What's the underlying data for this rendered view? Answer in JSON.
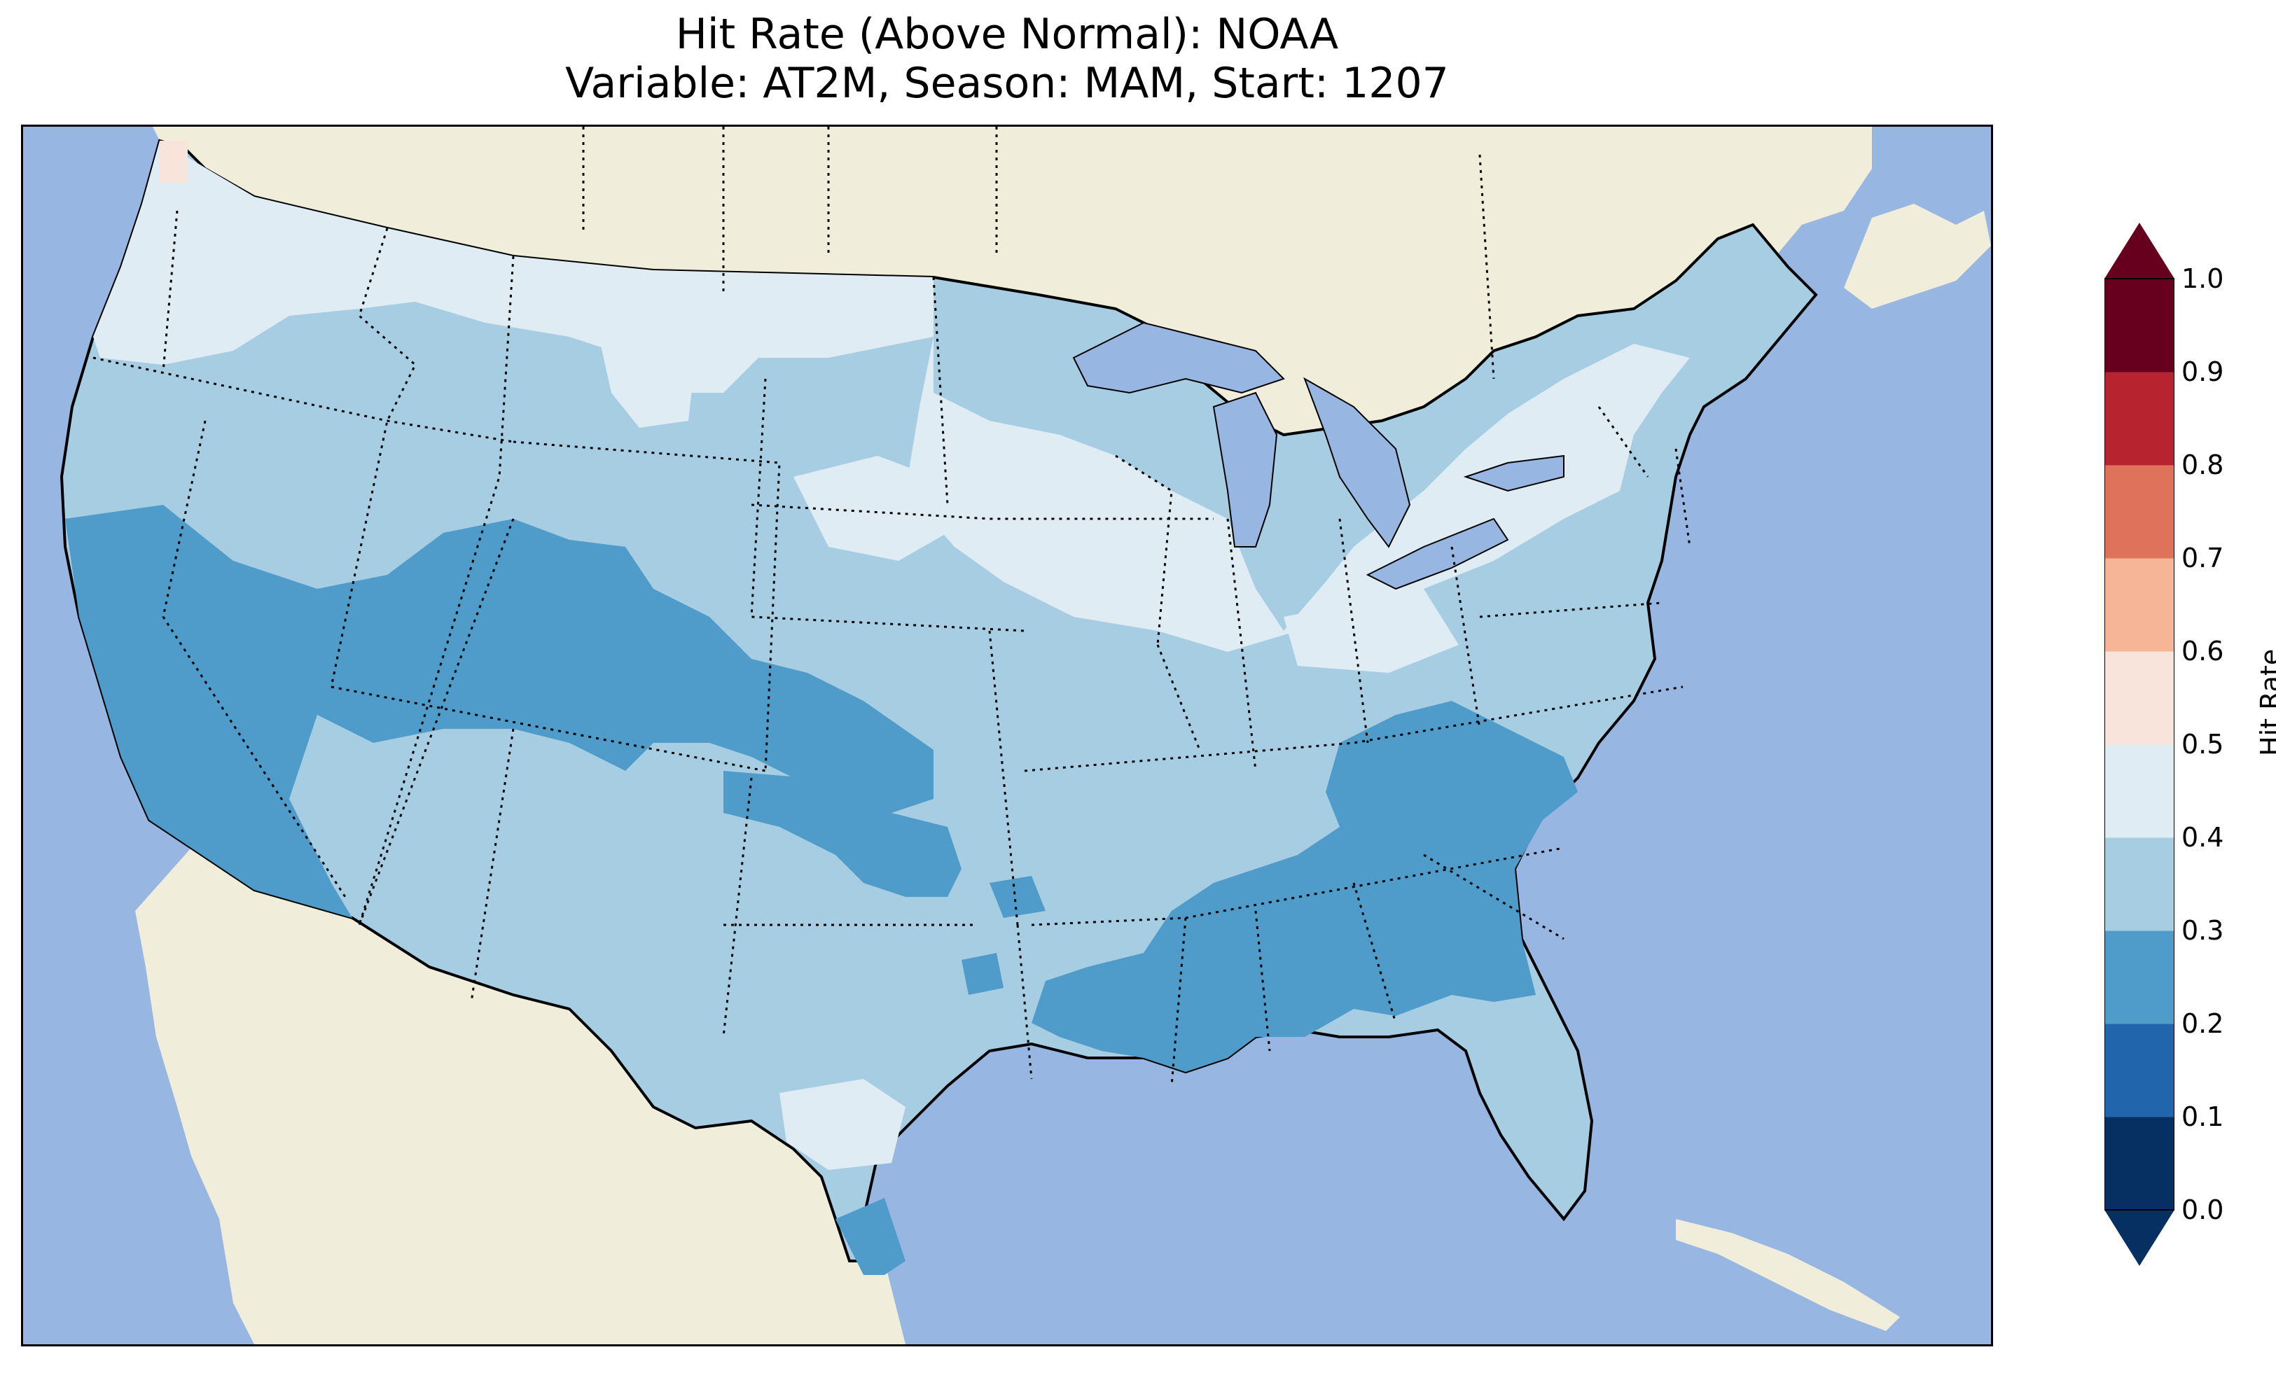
{
  "title": {
    "line1": "Hit Rate (Above Normal): NOAA",
    "line2": "Variable: AT2M, Season: MAM, Start: 1207"
  },
  "colors": {
    "ocean": "#97b6e1",
    "land": "#f0eedb",
    "borders": "#000000"
  },
  "colorbar": {
    "label": "Hit Rate",
    "ticks": [
      "0.0",
      "0.1",
      "0.2",
      "0.3",
      "0.4",
      "0.5",
      "0.6",
      "0.7",
      "0.8",
      "0.9",
      "1.0"
    ],
    "extend": "both",
    "bins": [
      {
        "range": [
          0.0,
          0.1
        ],
        "color": "#053061"
      },
      {
        "range": [
          0.1,
          0.2
        ],
        "color": "#2166ac"
      },
      {
        "range": [
          0.2,
          0.3
        ],
        "color": "#4f9bc9"
      },
      {
        "range": [
          0.3,
          0.4
        ],
        "color": "#a7cde3"
      },
      {
        "range": [
          0.4,
          0.5
        ],
        "color": "#e0ecf4"
      },
      {
        "range": [
          0.5,
          0.6
        ],
        "color": "#f9e4dc"
      },
      {
        "range": [
          0.6,
          0.7
        ],
        "color": "#f5b596"
      },
      {
        "range": [
          0.7,
          0.8
        ],
        "color": "#de725a"
      },
      {
        "range": [
          0.8,
          0.9
        ],
        "color": "#b7242f"
      },
      {
        "range": [
          0.9,
          1.0
        ],
        "color": "#67001f"
      }
    ]
  },
  "map": {
    "region": "Contiguous United States",
    "state_borders": "dotted",
    "coastlines": "solid"
  }
}
